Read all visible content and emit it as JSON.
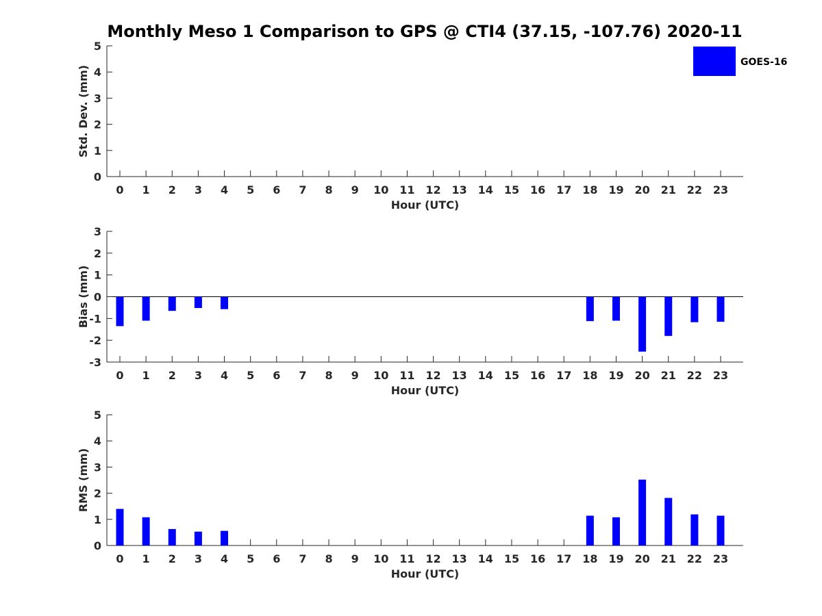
{
  "title": "Monthly Meso 1 Comparison to GPS @ CTI4 (37.15, -107.76) 2020-11",
  "legend": {
    "entries": [
      {
        "label": "GOES-16",
        "color": "#0000ff"
      }
    ],
    "placement": "top-right"
  },
  "chart_data": [
    {
      "type": "bar",
      "xlabel": "Hour (UTC)",
      "ylabel": "Std. Dev. (mm)",
      "categories": [
        "0",
        "1",
        "2",
        "3",
        "4",
        "5",
        "6",
        "7",
        "8",
        "9",
        "10",
        "11",
        "12",
        "13",
        "14",
        "15",
        "16",
        "17",
        "18",
        "19",
        "20",
        "21",
        "22",
        "23"
      ],
      "yticks": [
        "0",
        "1",
        "2",
        "3",
        "4",
        "5"
      ],
      "ylim": [
        0,
        5
      ],
      "grid": false,
      "series": [
        {
          "name": "GOES-16",
          "color": "#0000ff",
          "values": [
            null,
            null,
            null,
            null,
            null,
            null,
            null,
            null,
            null,
            null,
            null,
            null,
            null,
            null,
            null,
            null,
            null,
            null,
            null,
            null,
            null,
            null,
            null,
            null
          ]
        }
      ]
    },
    {
      "type": "bar",
      "xlabel": "Hour (UTC)",
      "ylabel": "Bias (mm)",
      "categories": [
        "0",
        "1",
        "2",
        "3",
        "4",
        "5",
        "6",
        "7",
        "8",
        "9",
        "10",
        "11",
        "12",
        "13",
        "14",
        "15",
        "16",
        "17",
        "18",
        "19",
        "20",
        "21",
        "22",
        "23"
      ],
      "yticks": [
        "-3",
        "-2",
        "-1",
        "0",
        "1",
        "2",
        "3"
      ],
      "ylim": [
        -3,
        3
      ],
      "grid": false,
      "zero_line": true,
      "series": [
        {
          "name": "GOES-16",
          "color": "#0000ff",
          "values": [
            -1.35,
            -1.1,
            -0.65,
            -0.52,
            -0.57,
            null,
            null,
            null,
            null,
            null,
            null,
            null,
            null,
            null,
            null,
            null,
            null,
            null,
            -1.12,
            -1.1,
            -2.52,
            -1.8,
            -1.17,
            -1.15
          ]
        }
      ]
    },
    {
      "type": "bar",
      "xlabel": "Hour (UTC)",
      "ylabel": "RMS (mm)",
      "categories": [
        "0",
        "1",
        "2",
        "3",
        "4",
        "5",
        "6",
        "7",
        "8",
        "9",
        "10",
        "11",
        "12",
        "13",
        "14",
        "15",
        "16",
        "17",
        "18",
        "19",
        "20",
        "21",
        "22",
        "23"
      ],
      "yticks": [
        "0",
        "1",
        "2",
        "3",
        "4",
        "5"
      ],
      "ylim": [
        0,
        5
      ],
      "grid": false,
      "series": [
        {
          "name": "GOES-16",
          "color": "#0000ff",
          "values": [
            1.4,
            1.08,
            0.63,
            0.53,
            0.56,
            null,
            null,
            null,
            null,
            null,
            null,
            null,
            null,
            null,
            null,
            null,
            null,
            null,
            1.14,
            1.08,
            2.52,
            1.82,
            1.19,
            1.14
          ]
        }
      ]
    }
  ]
}
